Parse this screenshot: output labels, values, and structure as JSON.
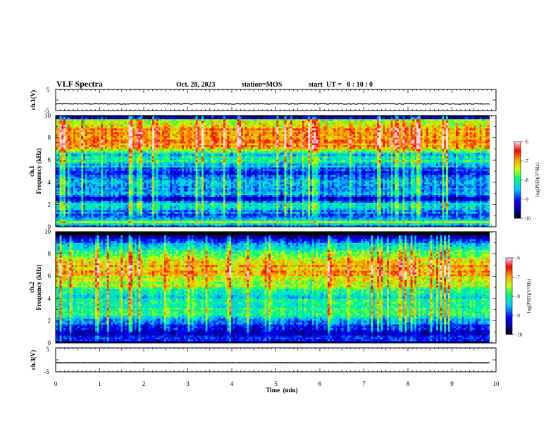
{
  "header": {
    "title": "VLF Spectra",
    "date": "Oct. 28, 2023",
    "station": "station=MOS",
    "start": "start  UT =   0 : 10 : 0"
  },
  "chart_data": [
    {
      "type": "line",
      "name": "ch1-waveform",
      "ylabel": "ch.1(V)",
      "ylim": [
        -5,
        5
      ],
      "yticks": [
        "5",
        "-5"
      ],
      "x": [
        0,
        10
      ],
      "baseline": -1.8,
      "note_color": "#000000"
    },
    {
      "type": "heatmap",
      "name": "ch1-spectrogram",
      "ylabel": "ch.1\nFrequency (kHz)",
      "ylabel_lines": [
        "ch.1",
        "Frequency (kHz)"
      ],
      "ylim": [
        0,
        10
      ],
      "yticks": [
        "0",
        "2",
        "4",
        "6",
        "8",
        "10"
      ],
      "xlim": [
        0,
        10
      ],
      "data_end_min": 9.85,
      "colorbar": {
        "label": "log(PSD)(V²/Hz)",
        "ticks": [
          "-6",
          "-7",
          "-8",
          "-9",
          "-10"
        ],
        "range": [
          -10,
          -6
        ]
      },
      "band_profile": [
        [
          0.0,
          -9.2
        ],
        [
          0.4,
          -7.5
        ],
        [
          0.8,
          -9.0
        ],
        [
          1.5,
          -8.6
        ],
        [
          2.0,
          -8.0
        ],
        [
          2.5,
          -9.4
        ],
        [
          3.0,
          -8.3
        ],
        [
          3.5,
          -8.7
        ],
        [
          4.0,
          -8.4
        ],
        [
          4.5,
          -9.0
        ],
        [
          5.0,
          -8.9
        ],
        [
          5.5,
          -8.5
        ],
        [
          6.0,
          -7.9
        ],
        [
          6.5,
          -8.4
        ],
        [
          7.0,
          -7.2
        ],
        [
          7.5,
          -6.9
        ],
        [
          8.0,
          -6.8
        ],
        [
          8.5,
          -6.9
        ],
        [
          9.0,
          -7.0
        ],
        [
          9.5,
          -7.4
        ],
        [
          10.0,
          -8.8
        ]
      ]
    },
    {
      "type": "heatmap",
      "name": "ch2-spectrogram",
      "ylabel": "ch.2\nFrequency (kHz)",
      "ylabel_lines": [
        "ch.2",
        "Frequency (kHz)"
      ],
      "ylim": [
        0,
        10
      ],
      "yticks": [
        "0",
        "2",
        "4",
        "6",
        "8",
        "10"
      ],
      "xlim": [
        0,
        10
      ],
      "data_end_min": 9.85,
      "colorbar": {
        "label": "log(PSD)(V²/Hz)",
        "ticks": [
          "-6",
          "-7",
          "-8",
          "-9",
          "-10"
        ],
        "range": [
          -10,
          -6
        ]
      },
      "band_profile": [
        [
          0.0,
          -9.6
        ],
        [
          0.4,
          -9.0
        ],
        [
          0.8,
          -9.3
        ],
        [
          1.5,
          -9.2
        ],
        [
          2.0,
          -8.6
        ],
        [
          2.5,
          -8.0
        ],
        [
          3.0,
          -7.9
        ],
        [
          3.5,
          -8.1
        ],
        [
          4.0,
          -8.2
        ],
        [
          4.5,
          -8.3
        ],
        [
          5.0,
          -7.6
        ],
        [
          5.5,
          -7.4
        ],
        [
          6.0,
          -7.2
        ],
        [
          6.5,
          -7.0
        ],
        [
          7.0,
          -7.1
        ],
        [
          7.5,
          -7.4
        ],
        [
          8.0,
          -7.8
        ],
        [
          8.5,
          -8.3
        ],
        [
          9.0,
          -8.8
        ],
        [
          9.5,
          -9.3
        ],
        [
          10.0,
          -9.8
        ]
      ]
    },
    {
      "type": "line",
      "name": "ch3-waveform",
      "ylabel": "ch.3(V)",
      "ylim": [
        -5,
        5
      ],
      "yticks": [
        "5",
        "-5"
      ],
      "x": [
        0,
        10
      ],
      "baseline": -1.2,
      "xlabel": "Time  (min)",
      "xticks": [
        "0",
        "1",
        "2",
        "3",
        "4",
        "5",
        "6",
        "7",
        "8",
        "9",
        "10"
      ]
    }
  ]
}
